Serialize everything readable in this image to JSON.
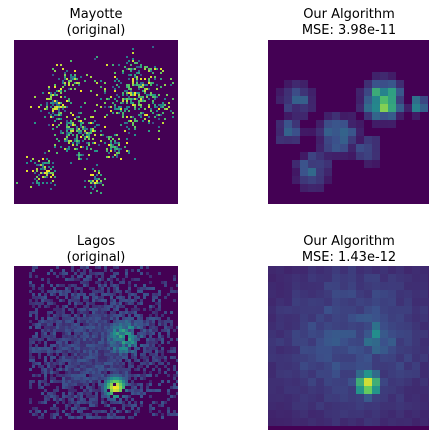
{
  "figure": {
    "panels": [
      {
        "title_line1": "Mayotte",
        "title_line2": "(original)"
      },
      {
        "title_line1": "Our Algorithm",
        "title_line2": "MSE: 3.98e-11"
      },
      {
        "title_line1": "Lagos",
        "title_line2": "(original)"
      },
      {
        "title_line1": "Our Algorithm",
        "title_line2": "MSE: 1.43e-12"
      }
    ]
  },
  "chart_data": [
    {
      "type": "heatmap",
      "title": "Mayotte (original)",
      "colormap": "viridis",
      "axes": "off",
      "resolution": "high"
    },
    {
      "type": "heatmap",
      "title": "Our Algorithm MSE: 3.98e-11",
      "colormap": "viridis",
      "axes": "off",
      "resolution": "coarse grid",
      "mse": 3.98e-11
    },
    {
      "type": "heatmap",
      "title": "Lagos (original)",
      "colormap": "viridis",
      "axes": "off",
      "resolution": "high"
    },
    {
      "type": "heatmap",
      "title": "Our Algorithm MSE: 1.43e-12",
      "colormap": "viridis",
      "axes": "off",
      "resolution": "coarse grid",
      "mse": 1.43e-12
    }
  ]
}
